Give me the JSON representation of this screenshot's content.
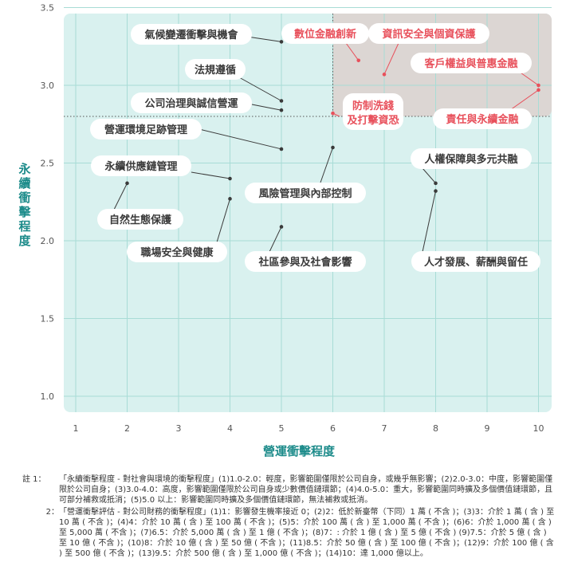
{
  "chart_data": {
    "type": "scatter",
    "xlabel": "營運衝擊程度",
    "ylabel": "永續衝擊程度",
    "xlim": [
      1,
      10.5
    ],
    "ylim": [
      1.0,
      3.5
    ],
    "x_ticks": [
      "1",
      "2",
      "3",
      "4",
      "5",
      "6",
      "7",
      "8",
      "9",
      "10"
    ],
    "y_ticks": [
      "1.0",
      "1.5",
      "2.0",
      "2.5",
      "3.0",
      "3.5"
    ],
    "threshold_x": 6,
    "threshold_y": 2.8,
    "grid": true,
    "colors": {
      "normal": "#333333",
      "highlight": "#e8505b",
      "accent": "#1c8b8a",
      "panel": "#d9f1ef",
      "highlight_zone": "#dcd6d3",
      "grid": "#a8dcd6"
    },
    "points": [
      {
        "label": "氣候變遷衝擊與機會",
        "x": 5.0,
        "y": 3.28,
        "highlight": false
      },
      {
        "label": "法規遵循",
        "x": 5.0,
        "y": 2.9,
        "highlight": false
      },
      {
        "label": "公司治理與誠信營運",
        "x": 5.0,
        "y": 2.84,
        "highlight": false
      },
      {
        "label": "營運環境足跡管理",
        "x": 5.0,
        "y": 2.59,
        "highlight": false
      },
      {
        "label": "風險管理與內部控制",
        "x": 6.0,
        "y": 2.6,
        "highlight": false
      },
      {
        "label": "社區參與及社會影響",
        "x": 5.0,
        "y": 2.09,
        "highlight": false
      },
      {
        "label": "永續供應鏈管理",
        "x": 4.0,
        "y": 2.4,
        "highlight": false
      },
      {
        "label": "自然生態保護",
        "x": 2.0,
        "y": 2.37,
        "highlight": false
      },
      {
        "label": "職場安全與健康",
        "x": 4.0,
        "y": 2.27,
        "highlight": false
      },
      {
        "label": "人權保障與多元共融",
        "x": 8.0,
        "y": 2.37,
        "highlight": false
      },
      {
        "label": "人才發展、薪酬與留任",
        "x": 8.0,
        "y": 2.32,
        "highlight": false
      },
      {
        "label": "數位金融創新",
        "x": 6.5,
        "y": 3.16,
        "highlight": true
      },
      {
        "label": "資訊安全與個資保護",
        "x": 7.0,
        "y": 3.07,
        "highlight": true
      },
      {
        "label": "客戶權益與普惠金融",
        "x": 10.0,
        "y": 3.0,
        "highlight": true
      },
      {
        "label": "責任與永續金融",
        "x": 10.0,
        "y": 2.97,
        "highlight": true
      },
      {
        "label": "防制洗錢及打擊資恐",
        "x": 6.0,
        "y": 2.82,
        "highlight": true
      }
    ]
  },
  "notes": [
    {
      "num": "註 1：",
      "text": "「永續衝擊程度 - 對社會與環境的衝擊程度」(1)1.0-2.0：輕度，影響範圍僅限於公司自身，或幾乎無影響；(2)2.0-3.0：中度，影響範圍僅限於公司自身；(3)3.0-4.0：高度，影響範圍僅限於公司自身或少數價值鏈環節；(4)4.0-5.0：重大，影響範圍同時擴及多個價值鏈環節，且可部分補救或抵消；(5)5.0 以上：影響範圍同時擴及多個價值鏈環節，無法補救或抵消。"
    },
    {
      "num": "2：",
      "text": "「營運衝擊評估 - 對公司財務的衝擊程度」(1)1：影響發生機率接近 0；(2)2：低於新臺幣（下同）1 萬 ( 不含 )；(3)3：介於 1 萬 ( 含 ) 至 10 萬 ( 不含 )；(4)4：介於 10 萬 ( 含 ) 至 100 萬 ( 不含 )；(5)5：介於 100 萬 ( 含 ) 至 1,000 萬 ( 不含 )；(6)6：介於 1,000 萬 ( 含 ) 至 5,000 萬 ( 不含 )；(7)6.5：介於 5,000 萬 ( 含 ) 至 1 億 ( 不含 )；(8)7：: 介於 1 億 ( 含 ) 至 5 億 ( 不含 ) (9)7.5：介於 5 億 ( 含 ) 至 10 億 ( 不含 )；(10)8：介於 10 億 ( 含 ) 至 50 億 ( 不含 )；(11)8.5：介於 50 億 ( 含 ) 至 100 億 ( 不含 )；(12)9：介於 100 億 ( 含 ) 至 500 億 ( 不含 )；(13)9.5：介於 500 億 ( 含 ) 至 1,000 億 ( 不含 )；(14)10：達 1,000 億以上。"
    }
  ]
}
